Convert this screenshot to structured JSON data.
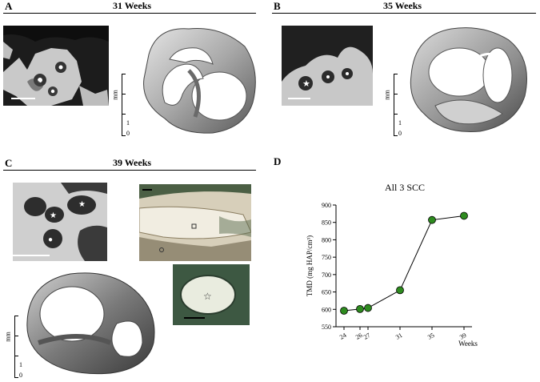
{
  "panels": {
    "a": {
      "letter": "A",
      "title": "31 Weeks"
    },
    "b": {
      "letter": "B",
      "title": "35 Weeks"
    },
    "c": {
      "letter": "C",
      "title": "39 Weeks"
    },
    "d": {
      "letter": "D"
    }
  },
  "mm_axis": {
    "unit": "mm",
    "tick_1": "1",
    "tick_0": "0"
  },
  "chart_data": {
    "type": "line",
    "title": "All 3 SCC",
    "xlabel": "Weeks",
    "ylabel": "TMD (mg HAP/cm³)",
    "x": [
      24,
      26,
      27,
      31,
      35,
      39
    ],
    "y": [
      596,
      601,
      604,
      655,
      857,
      869
    ],
    "ylim": [
      550,
      900
    ],
    "xticks": [
      "24",
      "26",
      "27",
      "31",
      "35",
      "39"
    ],
    "yticks": [
      "550",
      "600",
      "650",
      "700",
      "750",
      "800",
      "850",
      "900"
    ],
    "marker_color": "#2e8b1f",
    "grid": false
  }
}
